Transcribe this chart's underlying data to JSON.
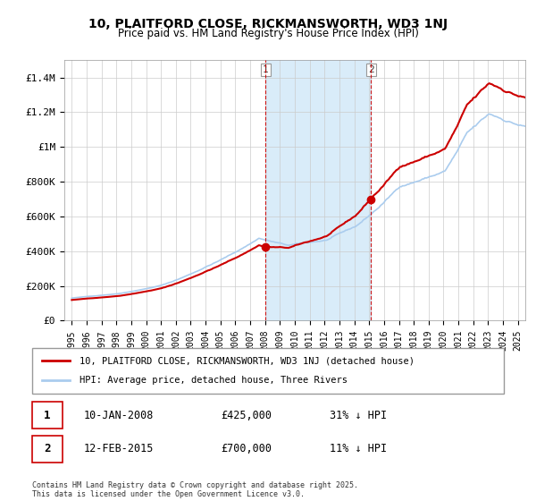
{
  "title": "10, PLAITFORD CLOSE, RICKMANSWORTH, WD3 1NJ",
  "subtitle": "Price paid vs. HM Land Registry's House Price Index (HPI)",
  "hpi_label": "HPI: Average price, detached house, Three Rivers",
  "property_label": "10, PLAITFORD CLOSE, RICKMANSWORTH, WD3 1NJ (detached house)",
  "sale1_date": "10-JAN-2008",
  "sale1_price": "£425,000",
  "sale1_hpi": "31% ↓ HPI",
  "sale2_date": "12-FEB-2015",
  "sale2_price": "£700,000",
  "sale2_hpi": "11% ↓ HPI",
  "footer": "Contains HM Land Registry data © Crown copyright and database right 2025.\nThis data is licensed under the Open Government Licence v3.0.",
  "hpi_color": "#aaccee",
  "property_color": "#cc0000",
  "sale1_x": 2008.03,
  "sale2_x": 2015.12,
  "ylim_max": 1500000,
  "yticks": [
    0,
    200000,
    400000,
    600000,
    800000,
    1000000,
    1200000,
    1400000
  ],
  "ytick_labels": [
    "£0",
    "£200K",
    "£400K",
    "£600K",
    "£800K",
    "£1M",
    "£1.2M",
    "£1.4M"
  ]
}
